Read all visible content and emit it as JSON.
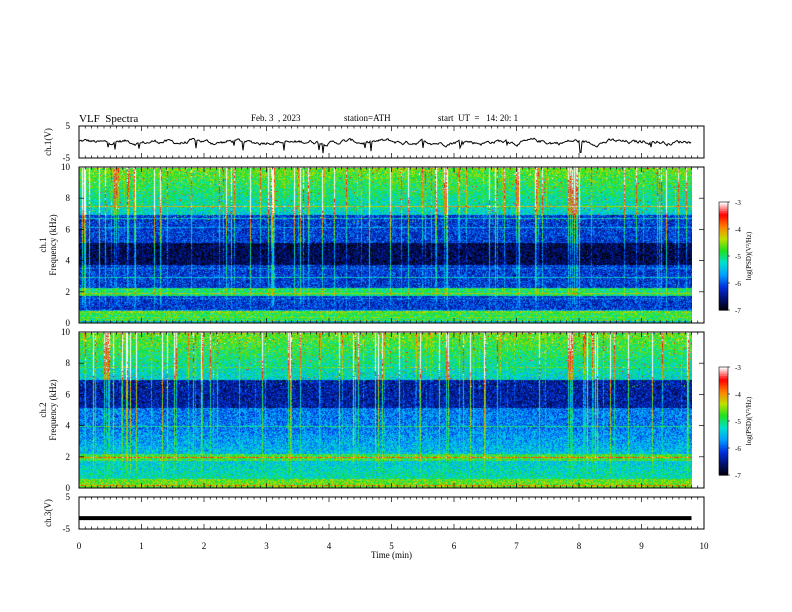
{
  "header": {
    "title": "VLF  Spectra",
    "date": "Feb. 3  , 2023",
    "station": "station=ATH",
    "start": "start  UT  =   14: 20: 1"
  },
  "chart_data": [
    {
      "type": "line",
      "panel": "ch1-waveform",
      "ylabel": "ch.1(V)",
      "ylim": [
        -5,
        5
      ],
      "yticks": [
        "5",
        "-5"
      ],
      "x_range_min": [
        0,
        9.8
      ],
      "baseline_value": 0
    },
    {
      "type": "heatmap",
      "panel": "ch1-spectrogram",
      "ylabel": "ch.1\nFrequency  (kHz)",
      "ylim": [
        0,
        10
      ],
      "yticks": [
        "0",
        "2",
        "4",
        "6",
        "8",
        "10"
      ],
      "x_range_min": [
        0,
        9.8
      ],
      "colorbar": {
        "label": "log(PSD)(V²/Hz)",
        "range": [
          -7,
          -3
        ],
        "ticks": [
          "-3",
          "-4",
          "-5",
          "-6",
          "-7"
        ]
      }
    },
    {
      "type": "heatmap",
      "panel": "ch2-spectrogram",
      "ylabel": "ch.2\nFrequency  (kHz)",
      "ylim": [
        0,
        10
      ],
      "yticks": [
        "0",
        "2",
        "4",
        "6",
        "8",
        "10"
      ],
      "x_range_min": [
        0,
        9.8
      ],
      "colorbar": {
        "label": "log(PSD)(V²/Hz)",
        "range": [
          -7,
          -3
        ],
        "ticks": [
          "-3",
          "-4",
          "-5",
          "-6",
          "-7"
        ]
      }
    },
    {
      "type": "line",
      "panel": "ch3-waveform",
      "ylabel": "ch.3(V)",
      "ylim": [
        -5,
        5
      ],
      "yticks": [
        "5",
        "-5"
      ],
      "x_range_min": [
        0,
        9.8
      ],
      "constant_value": -1.6
    }
  ],
  "xaxis": {
    "label": "Time  (min)",
    "range": [
      0,
      10
    ],
    "ticks": [
      "0",
      "1",
      "2",
      "3",
      "4",
      "5",
      "6",
      "7",
      "8",
      "9",
      "10"
    ]
  },
  "colors": {
    "colormap": [
      "#000000",
      "#001070",
      "#0030e0",
      "#00a0ff",
      "#00e0d0",
      "#20e020",
      "#c0e000",
      "#ff8000",
      "#ff0000",
      "#ffffff"
    ]
  }
}
